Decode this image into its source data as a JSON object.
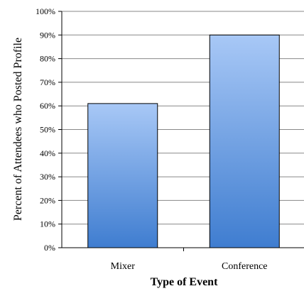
{
  "chart_data": {
    "type": "bar",
    "categories": [
      "Mixer",
      "Conference"
    ],
    "values": [
      61,
      90
    ],
    "xlabel": "Type of Event",
    "ylabel": "Percent of Attendees who Posted Profile",
    "ylim": [
      0,
      100
    ],
    "yticks": [
      "0%",
      "10%",
      "20%",
      "30%",
      "40%",
      "50%",
      "60%",
      "70%",
      "80%",
      "90%",
      "100%"
    ],
    "grid": true,
    "legend": "none",
    "colors": {
      "bar_top": "#a8c8f6",
      "bar_bottom": "#3f7dd0",
      "bar_edge": "#000000",
      "grid": "#888888"
    }
  }
}
